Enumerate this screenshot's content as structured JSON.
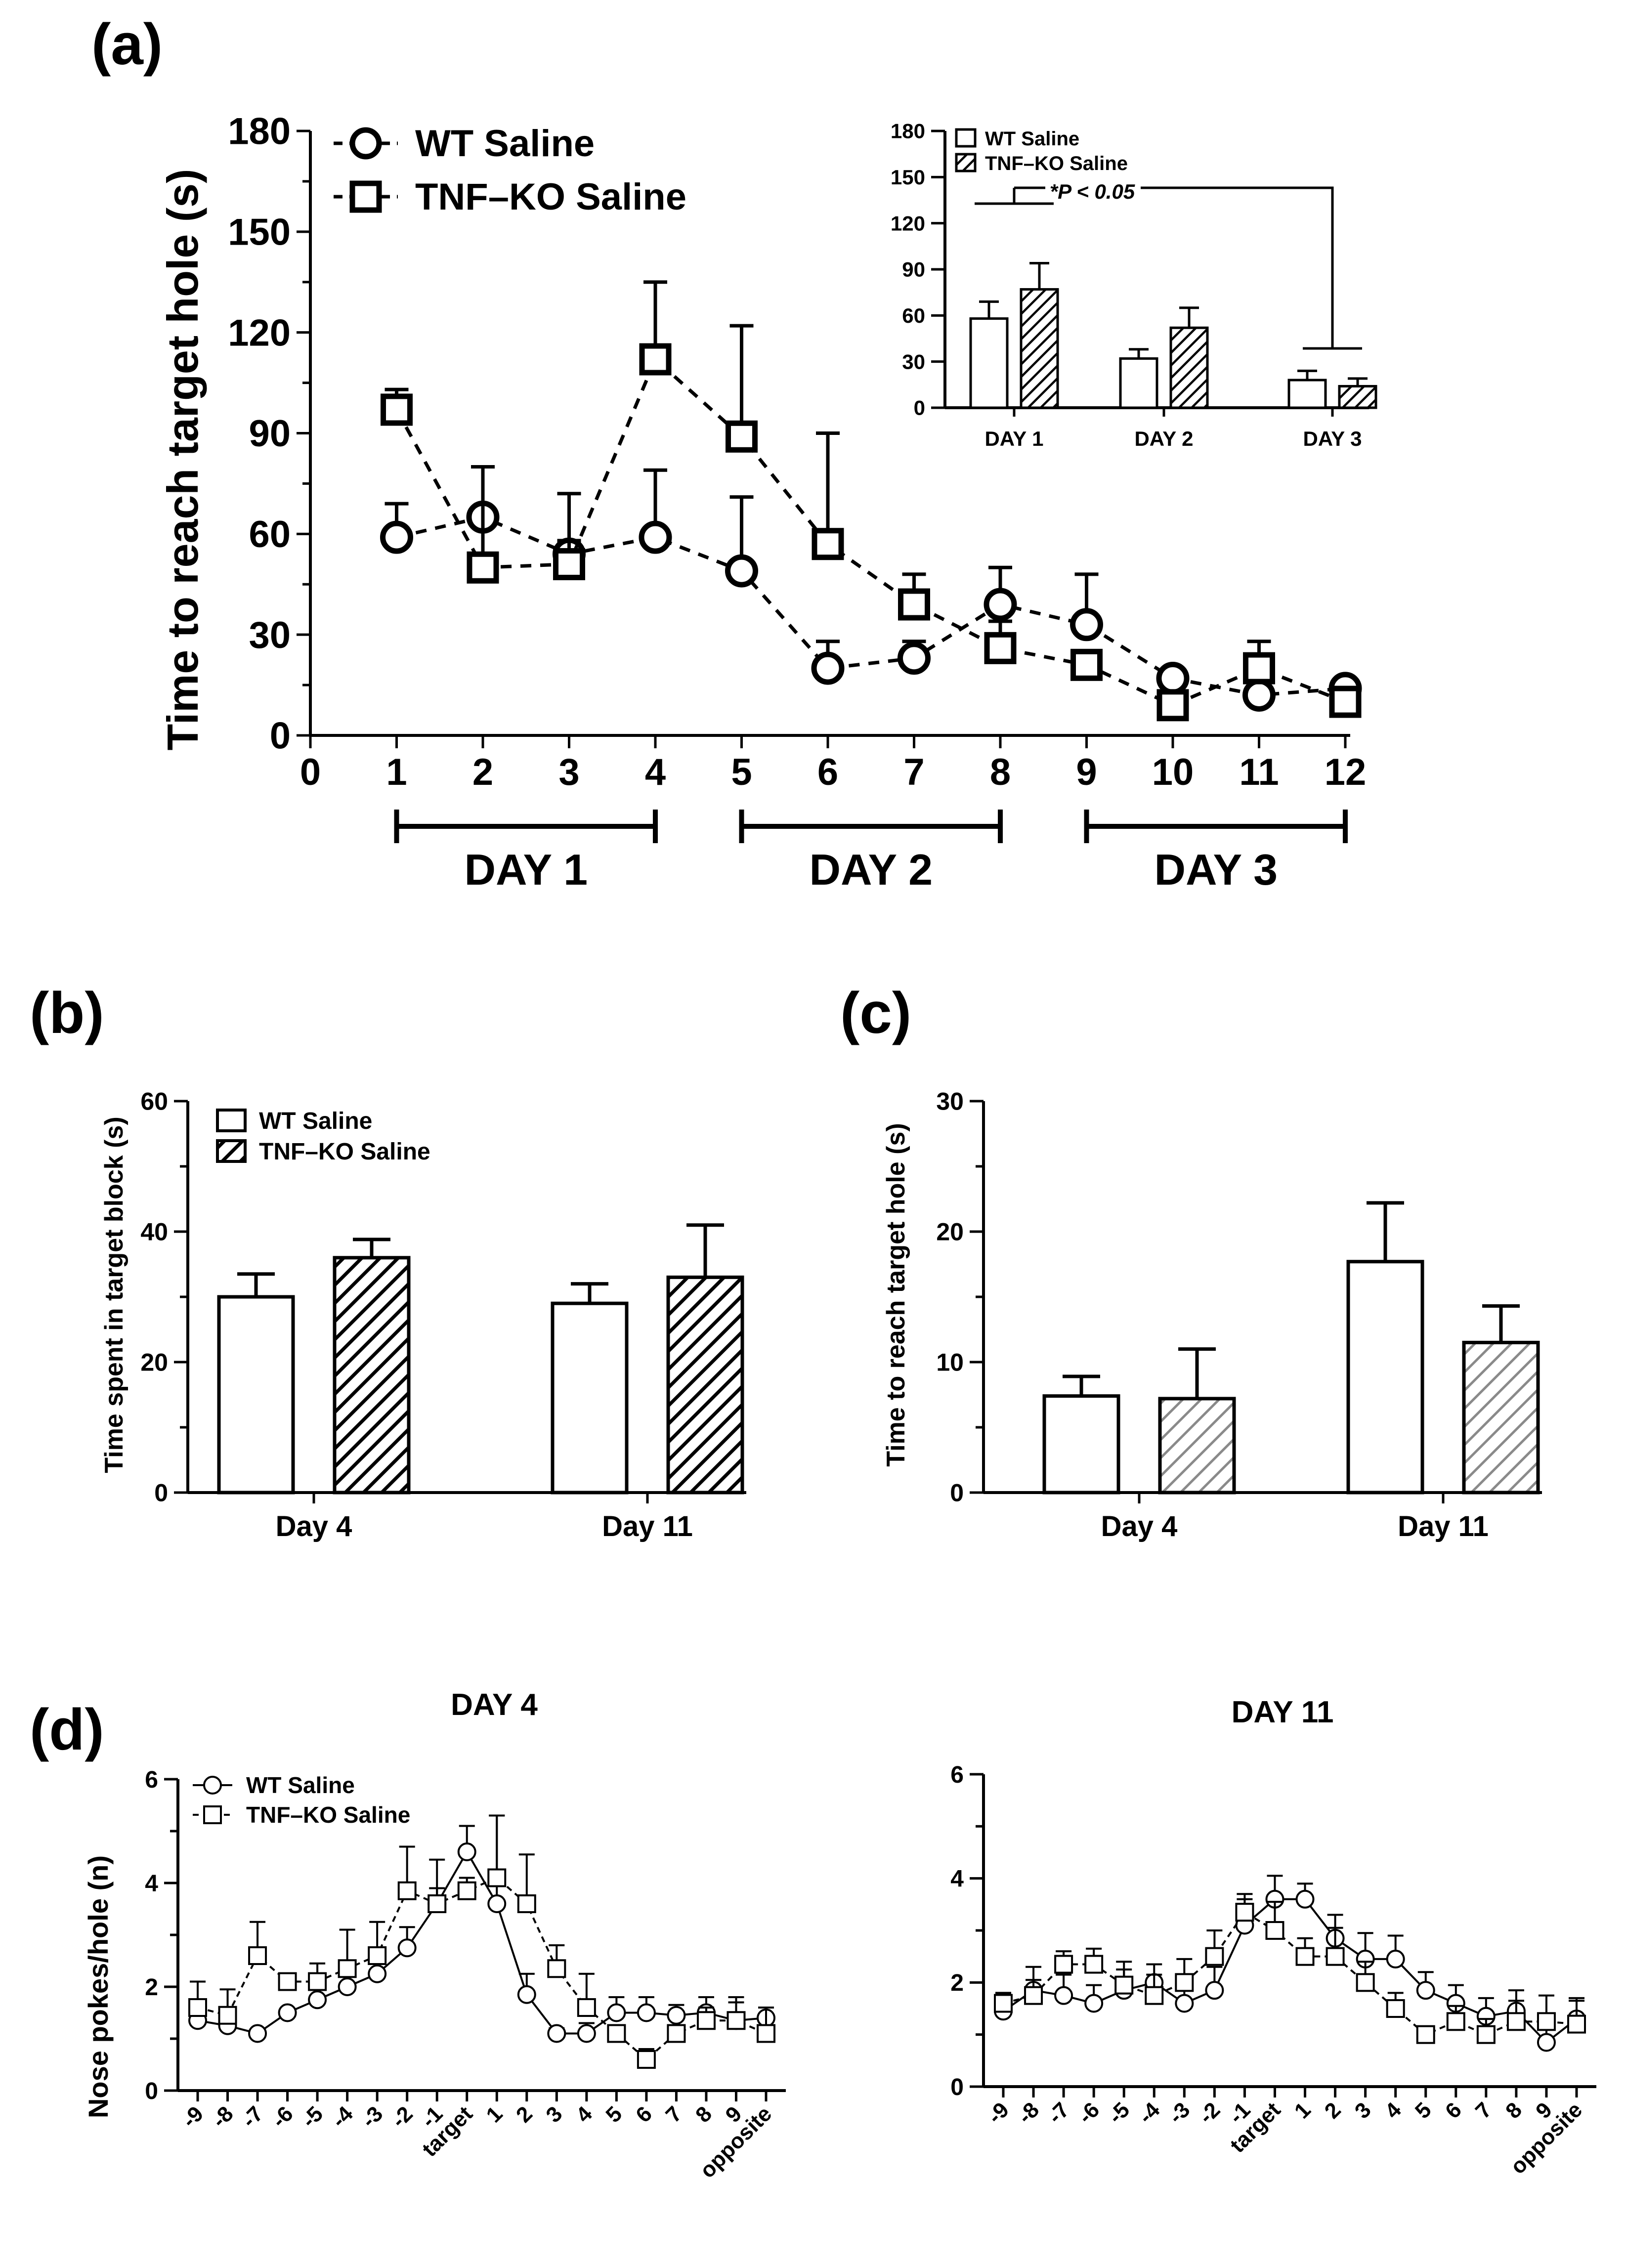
{
  "chart_data": [
    {
      "id": "a",
      "panel_label": "(a)",
      "type": "line",
      "title": "",
      "xlabel": "",
      "ylabel": "Time to reach target hole (s)",
      "xlim": [
        0,
        12
      ],
      "ylim": [
        0,
        180
      ],
      "xticks": [
        "0",
        "1",
        "2",
        "3",
        "4",
        "5",
        "6",
        "7",
        "8",
        "9",
        "10",
        "11",
        "12"
      ],
      "yticks": [
        "0",
        "30",
        "60",
        "90",
        "120",
        "150",
        "180"
      ],
      "legend_position": "top-left",
      "day_groups": [
        {
          "label": "DAY 1",
          "from": 1,
          "to": 4
        },
        {
          "label": "DAY 2",
          "from": 5,
          "to": 8
        },
        {
          "label": "DAY 3",
          "from": 9,
          "to": 12
        }
      ],
      "x": [
        1,
        2,
        3,
        4,
        5,
        6,
        7,
        8,
        9,
        10,
        11,
        12
      ],
      "series": [
        {
          "name": "WT Saline",
          "marker": "circle",
          "values": [
            59,
            65,
            54,
            59,
            49,
            20,
            23,
            39,
            33,
            17,
            12,
            14
          ],
          "err": [
            10,
            15,
            4,
            20,
            22,
            8,
            5,
            11,
            15,
            0,
            0,
            0
          ]
        },
        {
          "name": "TNF–KO Saline",
          "marker": "square",
          "values": [
            97,
            50,
            51,
            112,
            89,
            57,
            39,
            26,
            21,
            9,
            20,
            10
          ],
          "err": [
            6,
            30,
            21,
            23,
            33,
            33,
            9,
            8,
            0,
            0,
            8,
            0
          ]
        }
      ],
      "inset": {
        "type": "bar",
        "categories": [
          "DAY 1",
          "DAY 2",
          "DAY 3"
        ],
        "ylim": [
          0,
          180
        ],
        "yticks": [
          "0",
          "30",
          "60",
          "90",
          "120",
          "150",
          "180"
        ],
        "annotation": "*P < 0.05",
        "legend_position": "top-left",
        "series": [
          {
            "name": "WT Saline",
            "fill": "white",
            "values": [
              58,
              32,
              18
            ],
            "err": [
              11,
              6,
              6
            ]
          },
          {
            "name": "TNF–KO Saline",
            "fill": "hatched",
            "values": [
              77,
              52,
              14
            ],
            "err": [
              17,
              13,
              5
            ]
          }
        ]
      }
    },
    {
      "id": "b",
      "panel_label": "(b)",
      "type": "bar",
      "xlabel": "",
      "ylabel": "Time spent in target block  (s)",
      "ylim": [
        0,
        60
      ],
      "yticks": [
        "0",
        "20",
        "40",
        "60"
      ],
      "categories": [
        "Day 4",
        "Day 11"
      ],
      "legend_position": "top-left",
      "series": [
        {
          "name": "WT Saline",
          "fill": "white",
          "values": [
            30,
            29
          ],
          "err": [
            3.5,
            3
          ]
        },
        {
          "name": "TNF–KO Saline",
          "fill": "hatched",
          "values": [
            36,
            33
          ],
          "err": [
            2.8,
            8
          ]
        }
      ]
    },
    {
      "id": "c",
      "panel_label": "(c)",
      "type": "bar",
      "xlabel": "",
      "ylabel": "Time to reach target hole (s)",
      "ylim": [
        0,
        30
      ],
      "yticks": [
        "0",
        "10",
        "20",
        "30"
      ],
      "categories": [
        "Day 4",
        "Day 11"
      ],
      "series": [
        {
          "name": "WT Saline",
          "fill": "white",
          "values": [
            7.4,
            17.7
          ],
          "err": [
            1.5,
            4.5
          ]
        },
        {
          "name": "TNF–KO Saline",
          "fill": "gray-hatched",
          "values": [
            7.2,
            11.5
          ],
          "err": [
            3.8,
            2.8
          ]
        }
      ]
    },
    {
      "id": "d1",
      "panel_label": "(d)",
      "type": "line",
      "title": "DAY 4",
      "xlabel": "",
      "ylabel": "Nose pokes/hole (n)",
      "ylim": [
        0,
        6
      ],
      "yticks": [
        "0",
        "2",
        "4",
        "6"
      ],
      "categories": [
        "-9",
        "-8",
        "-7",
        "-6",
        "-5",
        "-4",
        "-3",
        "-2",
        "-1",
        "target",
        "1",
        "2",
        "3",
        "4",
        "5",
        "6",
        "7",
        "8",
        "9",
        "opposite"
      ],
      "legend_position": "top-left",
      "series": [
        {
          "name": "WT Saline",
          "marker": "circle",
          "values": [
            1.35,
            1.25,
            1.1,
            1.5,
            1.75,
            2.0,
            2.25,
            2.75,
            3.6,
            4.6,
            3.6,
            1.85,
            1.1,
            1.1,
            1.5,
            1.5,
            1.45,
            1.5,
            1.35,
            1.4
          ],
          "err": [
            0.25,
            0.2,
            0,
            0,
            0.25,
            0.3,
            0.3,
            0.4,
            0.3,
            0.5,
            1.7,
            0.4,
            0.1,
            0.2,
            0.3,
            0.3,
            0.2,
            0.3,
            0.35,
            0.2
          ]
        },
        {
          "name": "TNF–KO Saline",
          "marker": "square",
          "values": [
            1.6,
            1.45,
            2.6,
            2.1,
            2.1,
            2.35,
            2.6,
            3.85,
            3.6,
            3.85,
            4.1,
            3.6,
            2.35,
            1.6,
            1.1,
            0.6,
            1.1,
            1.35,
            1.35,
            1.1
          ],
          "err": [
            0.5,
            0.5,
            0.65,
            0,
            0.35,
            0.75,
            0.65,
            0.85,
            0.85,
            0.25,
            1.2,
            0.95,
            0.45,
            0.65,
            0,
            0.2,
            0,
            0.25,
            0.45,
            0.5
          ]
        }
      ]
    },
    {
      "id": "d2",
      "panel_label": "",
      "type": "line",
      "title": "DAY 11",
      "xlabel": "",
      "ylabel": "",
      "ylim": [
        0,
        6
      ],
      "yticks": [
        "0",
        "2",
        "4",
        "6"
      ],
      "categories": [
        "-9",
        "-8",
        "-7",
        "-6",
        "-5",
        "-4",
        "-3",
        "-2",
        "-1",
        "target",
        "1",
        "2",
        "3",
        "4",
        "5",
        "6",
        "7",
        "8",
        "9",
        "opposite"
      ],
      "series": [
        {
          "name": "WT Saline",
          "marker": "circle",
          "values": [
            1.45,
            1.85,
            1.75,
            1.6,
            1.85,
            2.0,
            1.6,
            1.85,
            3.1,
            3.6,
            3.6,
            2.85,
            2.45,
            2.45,
            1.85,
            1.6,
            1.35,
            1.45,
            0.85,
            1.3
          ],
          "err": [
            0.35,
            0.45,
            0.4,
            0.35,
            0.4,
            0.35,
            0.35,
            0.45,
            0.5,
            0.45,
            0.3,
            0.45,
            0.5,
            0.45,
            0.35,
            0.35,
            0.35,
            0.4,
            0.3,
            0.35
          ]
        },
        {
          "name": "TNF–KO Saline",
          "marker": "square",
          "values": [
            1.6,
            1.75,
            2.35,
            2.35,
            1.95,
            1.75,
            2.0,
            2.5,
            3.35,
            3.0,
            2.5,
            2.5,
            2.0,
            1.5,
            1.0,
            1.25,
            1.0,
            1.25,
            1.25,
            1.2
          ],
          "err": [
            0.2,
            0.3,
            0.25,
            0.3,
            0.45,
            0.4,
            0.45,
            0.5,
            0.35,
            0.55,
            0.35,
            0.55,
            0.4,
            0.3,
            0,
            0.3,
            0.3,
            0.4,
            0.5,
            0.5
          ]
        }
      ]
    }
  ]
}
